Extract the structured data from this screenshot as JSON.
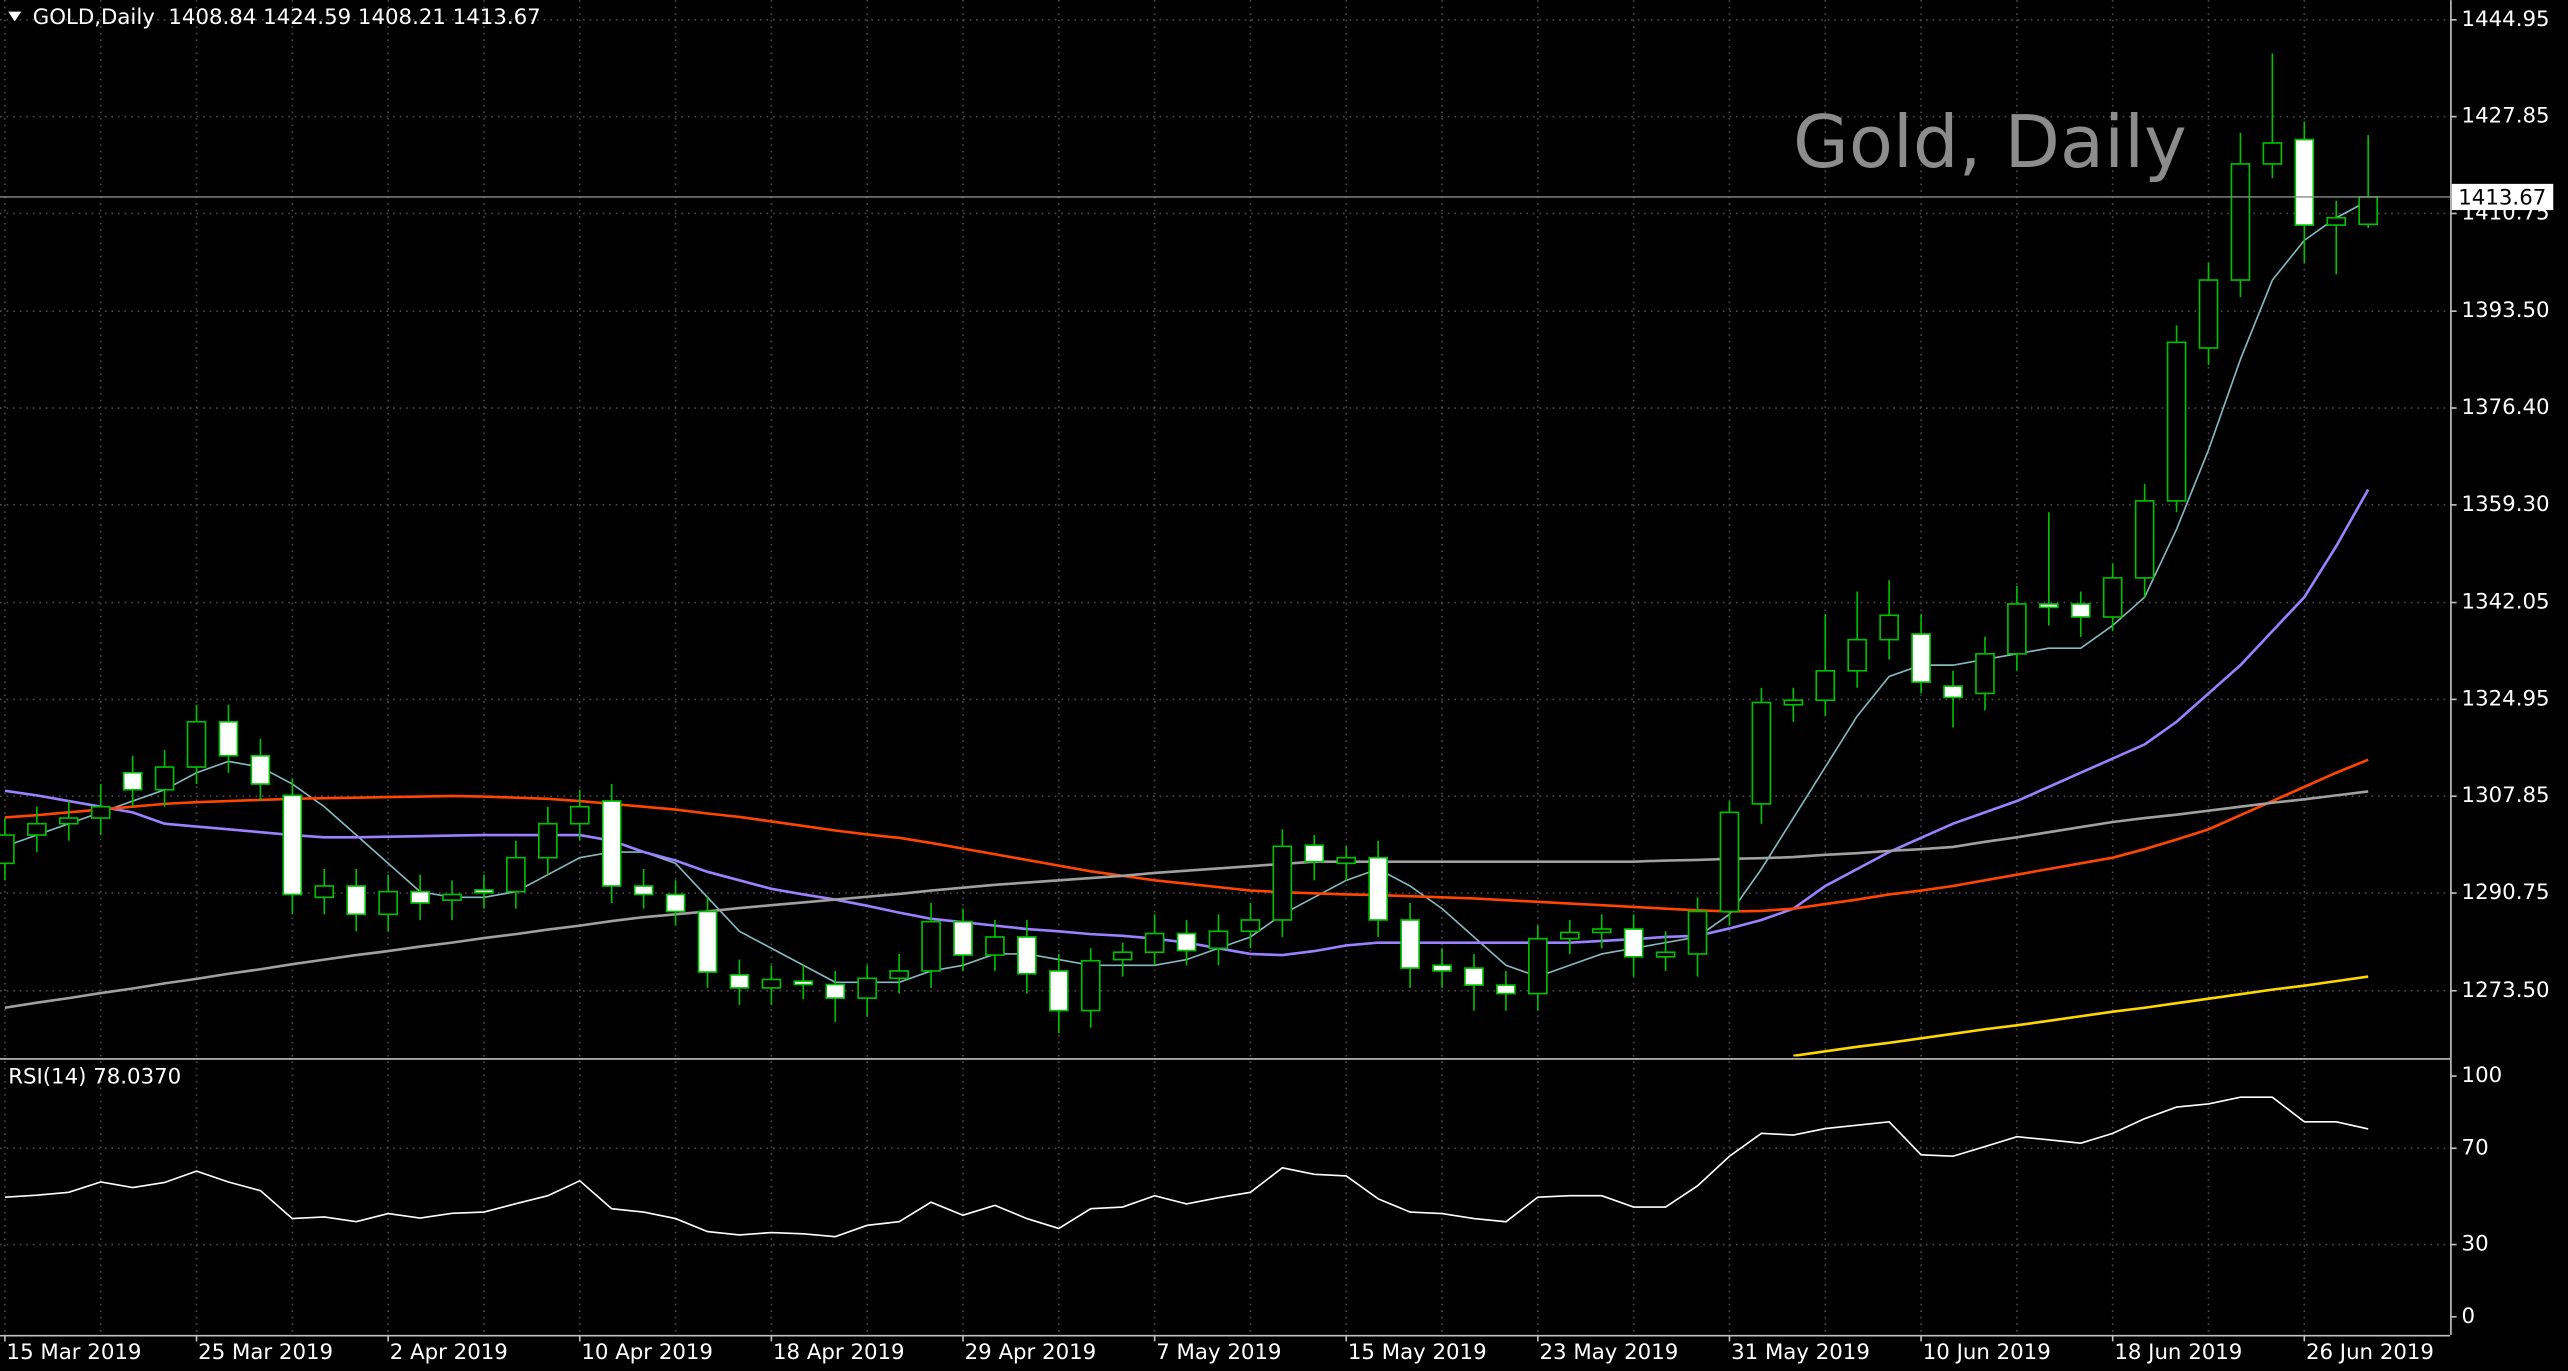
{
  "chart_data": [
    {
      "type": "candlestick",
      "title": "GOLD,Daily  1408.84 1424.59 1408.21 1413.67",
      "watermark": "Gold, Daily",
      "categories": [
        "15 Mar 2019",
        null,
        null,
        null,
        null,
        null,
        "25 Mar 2019",
        null,
        null,
        null,
        null,
        null,
        "2 Apr 2019",
        null,
        null,
        null,
        null,
        null,
        "10 Apr 2019",
        null,
        null,
        null,
        null,
        null,
        "18 Apr 2019",
        null,
        null,
        null,
        null,
        null,
        "29 Apr 2019",
        null,
        null,
        null,
        null,
        null,
        "7 May 2019",
        null,
        null,
        null,
        null,
        null,
        "15 May 2019",
        null,
        null,
        null,
        null,
        null,
        "23 May 2019",
        null,
        null,
        null,
        null,
        null,
        "31 May 2019",
        null,
        null,
        null,
        null,
        null,
        "10 Jun 2019",
        null,
        null,
        null,
        null,
        null,
        "18 Jun 2019",
        null,
        null,
        null,
        null,
        null,
        "26 Jun 2019",
        null,
        null
      ],
      "open": [
        1296,
        1301,
        1303,
        1304,
        1312,
        1309,
        1313,
        1321,
        1315,
        1308,
        1290,
        1292,
        1287,
        1291,
        1289.5,
        1291.3,
        1291,
        1297,
        1303,
        1307,
        1292,
        1290.5,
        1287.5,
        1276.3,
        1274,
        1275.2,
        1274.6,
        1272.2,
        1275.7,
        1277,
        1285.7,
        1279.8,
        1283,
        1277,
        1270,
        1279,
        1280.3,
        1283.6,
        1281,
        1284,
        1286,
        1299.2,
        1296,
        1297,
        1286,
        1278,
        1277.5,
        1274.5,
        1273,
        1282.7,
        1283.8,
        1284.4,
        1279.5,
        1280,
        1287.5,
        1306.5,
        1324,
        1324.8,
        1330,
        1335.5,
        1336.5,
        1327.3,
        1326,
        1333,
        1341.8,
        1341.8,
        1339.5,
        1346.4,
        1360,
        1387,
        1399,
        1419.5,
        1423.8,
        1408.7,
        1408.84
      ],
      "high": [
        1304,
        1306,
        1307,
        1310,
        1315,
        1316,
        1324,
        1324,
        1318,
        1311,
        1295,
        1295,
        1294,
        1294,
        1293,
        1294,
        1300,
        1306,
        1309,
        1310,
        1295,
        1293,
        1290,
        1279,
        1278,
        1278,
        1277,
        1278,
        1280,
        1289,
        1288,
        1286,
        1286,
        1280,
        1281,
        1282,
        1287,
        1286,
        1287,
        1289,
        1302,
        1301,
        1299,
        1300,
        1289,
        1281,
        1280,
        1277,
        1285,
        1286,
        1287,
        1287,
        1284,
        1290,
        1307,
        1327,
        1327,
        1340,
        1344,
        1346,
        1340,
        1330,
        1336,
        1345,
        1358,
        1344,
        1349,
        1363,
        1391,
        1402,
        1425,
        1439,
        1427,
        1413,
        1424.59
      ],
      "low": [
        1293,
        1298,
        1300,
        1301,
        1306,
        1306,
        1310,
        1312,
        1307,
        1287,
        1287,
        1284,
        1284,
        1286,
        1286,
        1288,
        1288,
        1294,
        1300,
        1289,
        1288,
        1285,
        1274,
        1271,
        1271,
        1272,
        1268,
        1269,
        1273,
        1274,
        1277,
        1277,
        1273,
        1266,
        1267,
        1276,
        1278,
        1278,
        1278,
        1281,
        1283,
        1293,
        1293,
        1283,
        1274,
        1274,
        1270,
        1270,
        1270,
        1280,
        1281,
        1276,
        1277,
        1276,
        1285,
        1303,
        1321,
        1322,
        1327,
        1332,
        1326,
        1320,
        1323,
        1330,
        1338,
        1336,
        1337,
        1343,
        1358,
        1384,
        1396,
        1417,
        1402,
        1400,
        1408.21
      ],
      "close": [
        1301,
        1303,
        1304,
        1306,
        1309,
        1313,
        1321,
        1315,
        1310,
        1290.5,
        1292,
        1287,
        1291,
        1289,
        1290.5,
        1290.8,
        1297,
        1303,
        1306,
        1292,
        1290.5,
        1287.5,
        1276.8,
        1274,
        1275.5,
        1274.6,
        1272.2,
        1275.7,
        1277,
        1285.7,
        1279.8,
        1283,
        1276.5,
        1270,
        1278.8,
        1280.3,
        1283.6,
        1280.6,
        1284,
        1286,
        1299,
        1296.3,
        1297,
        1286,
        1277.5,
        1277,
        1274.5,
        1273,
        1282.7,
        1283.8,
        1284.4,
        1279.5,
        1280.3,
        1287.5,
        1305,
        1324.4,
        1324.8,
        1330,
        1335.5,
        1339.8,
        1328,
        1325.3,
        1333,
        1341.8,
        1341.2,
        1339.5,
        1346.4,
        1360,
        1388,
        1399,
        1419.5,
        1423.2,
        1408.7,
        1410,
        1413.67
      ],
      "bull_color": "#000000",
      "bear_color": "#ffffff",
      "wick_color": "#00c000",
      "last_price": 1413.67,
      "ylim": [
        1261.9,
        1448.43
      ],
      "yticks": [
        {
          "value": 1273.5,
          "label": "1273.50"
        },
        1290.75,
        1307.85,
        1324.95,
        1342.05,
        {
          "value": 1359.3,
          "label": "1359.30"
        },
        {
          "value": 1376.4,
          "label": "1376.40"
        },
        {
          "value": 1393.5,
          "label": "1393.50"
        },
        1410.75,
        1427.85,
        1444.95
      ],
      "grid": true,
      "overlays": [
        {
          "color": "#86b8c0",
          "values": [
            1299,
            1301,
            1303,
            1305,
            1307,
            1309,
            1312,
            1314,
            1313,
            1310,
            1306,
            1301,
            1296,
            1291,
            1290,
            1290,
            1291,
            1294,
            1297,
            1298,
            1298,
            1296,
            1290,
            1284,
            1281,
            1278,
            1275,
            1275,
            1275,
            1277,
            1278,
            1280,
            1280,
            1279,
            1278,
            1278,
            1278,
            1279,
            1281,
            1283,
            1287,
            1290,
            1293,
            1295,
            1292,
            1288,
            1283,
            1278,
            1276,
            1278,
            1280,
            1281,
            1282,
            1283,
            1287,
            1295,
            1304,
            1313,
            1322,
            1329,
            1331,
            1331,
            1332,
            1333,
            1334,
            1334,
            1338,
            1343,
            1355,
            1369,
            1385,
            1399,
            1406,
            1410,
            1413
          ]
        },
        {
          "color": "#9b80ff",
          "values": [
            1308.8,
            1308,
            1307,
            1306,
            1305,
            1303,
            1302.5,
            1302,
            1301.5,
            1301,
            1300.6,
            1300.6,
            1300.7,
            1300.8,
            1300.9,
            1301,
            1301,
            1301,
            1301,
            1300,
            1298,
            1296.5,
            1294.5,
            1293,
            1291.5,
            1290.5,
            1289.6,
            1288.5,
            1287.3,
            1286.2,
            1285.6,
            1285,
            1284.4,
            1284,
            1283.5,
            1283.2,
            1282.7,
            1282,
            1281,
            1280,
            1279.8,
            1280.5,
            1281.5,
            1282,
            1282,
            1282,
            1282,
            1282,
            1282,
            1282,
            1282.3,
            1282.6,
            1283,
            1283.2,
            1284.5,
            1286,
            1288,
            1292,
            1295,
            1298,
            1300.5,
            1303,
            1305,
            1307,
            1309.5,
            1312,
            1314.5,
            1317,
            1321,
            1326,
            1331,
            1337,
            1343,
            1352,
            1362
          ]
        },
        {
          "color": "#ff4500",
          "values": [
            1304.1,
            1304.5,
            1305,
            1305.5,
            1306,
            1306.5,
            1306.8,
            1307,
            1307.2,
            1307.4,
            1307.5,
            1307.6,
            1307.7,
            1307.8,
            1307.9,
            1307.8,
            1307.6,
            1307.4,
            1307,
            1306.5,
            1306,
            1305.5,
            1304.8,
            1304.2,
            1303.4,
            1302.6,
            1301.8,
            1301.1,
            1300.5,
            1299.6,
            1298.6,
            1297.6,
            1296.6,
            1295.6,
            1294.6,
            1293.8,
            1293,
            1292.4,
            1291.8,
            1291.2,
            1290.9,
            1290.7,
            1290.5,
            1290.4,
            1290.2,
            1290,
            1289.8,
            1289.5,
            1289.2,
            1288.9,
            1288.6,
            1288.3,
            1288,
            1287.7,
            1287.5,
            1287.6,
            1288,
            1288.8,
            1289.6,
            1290.5,
            1291.2,
            1292,
            1293,
            1294,
            1295,
            1296,
            1297,
            1298.5,
            1300.2,
            1302,
            1304.5,
            1307,
            1309.5,
            1312,
            1314.3
          ]
        },
        {
          "color": "#a0a0a0",
          "values": [
            1270.5,
            1271.4,
            1272.2,
            1273.1,
            1273.9,
            1274.8,
            1275.6,
            1276.5,
            1277.3,
            1278.2,
            1279,
            1279.8,
            1280.5,
            1281.3,
            1282,
            1282.8,
            1283.5,
            1284.3,
            1285,
            1285.8,
            1286.5,
            1287,
            1287.5,
            1288.1,
            1288.6,
            1289.1,
            1289.6,
            1290.1,
            1290.6,
            1291.2,
            1291.7,
            1292.2,
            1292.6,
            1293,
            1293.4,
            1293.8,
            1294.3,
            1294.7,
            1295.1,
            1295.5,
            1295.9,
            1296.3,
            1296.3,
            1296.3,
            1296.3,
            1296.3,
            1296.3,
            1296.3,
            1296.3,
            1296.3,
            1296.3,
            1296.3,
            1296.5,
            1296.6,
            1296.8,
            1296.9,
            1297.1,
            1297.5,
            1297.8,
            1298.2,
            1298.5,
            1298.9,
            1299.8,
            1300.6,
            1301.5,
            1302.4,
            1303.3,
            1304,
            1304.6,
            1305.3,
            1306,
            1306.7,
            1307.3,
            1308,
            1308.7
          ]
        },
        {
          "color": "#ffd700",
          "values": [
            null,
            null,
            null,
            null,
            null,
            null,
            null,
            null,
            null,
            null,
            null,
            null,
            null,
            null,
            null,
            null,
            null,
            null,
            null,
            null,
            null,
            null,
            null,
            null,
            null,
            null,
            null,
            null,
            null,
            null,
            null,
            null,
            null,
            null,
            null,
            null,
            null,
            null,
            null,
            null,
            null,
            null,
            null,
            null,
            null,
            null,
            null,
            null,
            null,
            null,
            null,
            null,
            null,
            null,
            null,
            null,
            1262,
            1262.8,
            1263.6,
            1264.3,
            1265.1,
            1265.9,
            1266.7,
            1267.4,
            1268.2,
            1269,
            1269.8,
            1270.5,
            1271.3,
            1272.1,
            1272.9,
            1273.7,
            1274.4,
            1275.2,
            1276
          ]
        }
      ]
    },
    {
      "type": "line",
      "title": "RSI(14) 78.0370",
      "values": [
        49.7,
        50.5,
        51.7,
        56,
        53.7,
        55.8,
        60.5,
        56,
        52.4,
        40.8,
        41.5,
        39.5,
        42.9,
        41,
        43,
        43.5,
        47,
        50.3,
        56.5,
        44.9,
        43.5,
        40.8,
        35.4,
        34,
        35,
        34.5,
        33.3,
        38,
        39.5,
        47.6,
        42.2,
        46.3,
        40.8,
        36.7,
        44.9,
        45.6,
        50.3,
        46.9,
        49.5,
        51.7,
        61.9,
        59.2,
        58.5,
        49,
        43.5,
        42.9,
        40.8,
        39.5,
        49.7,
        50.3,
        50.3,
        45.6,
        45.6,
        54.4,
        66.7,
        76.2,
        75.5,
        78.2,
        79.6,
        81,
        67.3,
        66.7,
        70.7,
        74.8,
        73.5,
        72.1,
        76.2,
        82.3,
        87.1,
        88.4,
        91.2,
        91.2,
        81,
        81,
        78.037
      ],
      "color": "#ffffff",
      "ylim": [
        -7.5,
        106.1
      ],
      "yticks": [
        0,
        30,
        70,
        100
      ],
      "grid": true
    }
  ]
}
